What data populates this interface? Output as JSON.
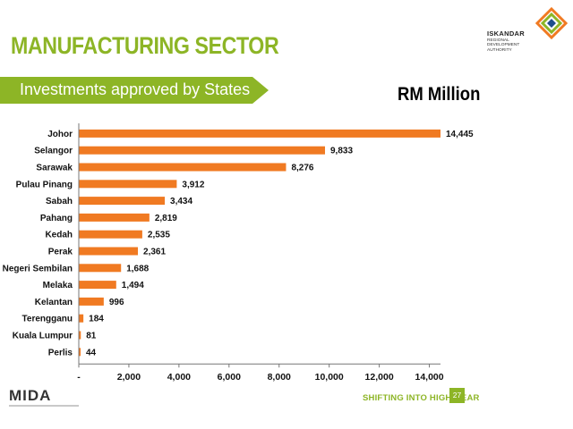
{
  "header": {
    "title": "MANUFACTURING SECTOR",
    "subtitle": "Investments approved by States",
    "unit": "RM Million"
  },
  "logo": {
    "name": "ISKANDAR",
    "subtitle": "REGIONAL DEVELOPMENT AUTHORITY"
  },
  "footer": {
    "brand": "MIDA",
    "tagline": "SHIFTING INTO HIGH GEAR",
    "page": "27"
  },
  "colors": {
    "accent": "#8db526",
    "bar": "#f07a22"
  },
  "chart_data": {
    "type": "bar",
    "orientation": "horizontal",
    "title": "Investments approved by States",
    "unit": "RM Million",
    "categories": [
      "Johor",
      "Selangor",
      "Sarawak",
      "Pulau Pinang",
      "Sabah",
      "Pahang",
      "Kedah",
      "Perak",
      "Negeri Sembilan",
      "Melaka",
      "Kelantan",
      "Terengganu",
      "Kuala Lumpur",
      "Perlis"
    ],
    "values": [
      14445,
      9833,
      8276,
      3912,
      3434,
      2819,
      2535,
      2361,
      1688,
      1494,
      996,
      184,
      81,
      44
    ],
    "value_labels": [
      "14,445",
      "9,833",
      "8,276",
      "3,912",
      "3,434",
      "2,819",
      "2,535",
      "2,361",
      "1,688",
      "1,494",
      "996",
      "184",
      "81",
      "44"
    ],
    "x_ticks": [
      0,
      2000,
      4000,
      6000,
      8000,
      10000,
      12000,
      14000
    ],
    "x_tick_labels": [
      "-",
      "2,000",
      "4,000",
      "6,000",
      "8,000",
      "10,000",
      "12,000",
      "14,000"
    ],
    "xlim": [
      0,
      14445
    ],
    "grid": false,
    "legend": "none"
  }
}
